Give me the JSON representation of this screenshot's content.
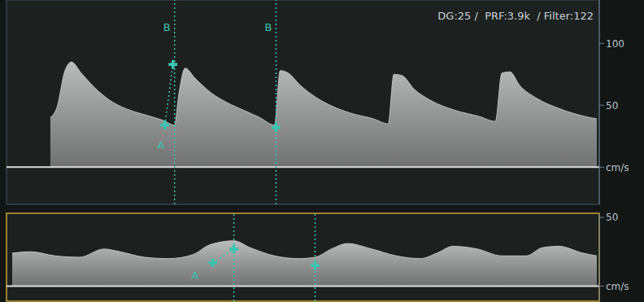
{
  "chart_data": [
    {
      "type": "area",
      "title": "DG:25 /  PRF:3.9k  / Filter:122",
      "x": [
        5.4,
        6.2,
        7.2,
        8,
        9.2,
        11.2,
        13.2,
        15.2,
        17.2,
        19.2,
        20.7,
        21.2,
        22,
        23.2,
        25.2,
        27.2,
        29.2,
        31.2,
        33,
        33.7,
        34.7,
        36.2,
        38.2,
        40.2,
        42.2,
        45.2,
        47,
        47.7,
        48.7,
        50.2,
        52.2,
        55.2,
        58.2,
        60.2,
        61,
        62,
        63.2,
        65.2,
        68.2,
        71.2,
        72.7
      ],
      "values": [
        40,
        48,
        78,
        85,
        76,
        62,
        52,
        46,
        42,
        38,
        34,
        58,
        80,
        72,
        60,
        52,
        46,
        40,
        34,
        78,
        76,
        66,
        56,
        49,
        44,
        39,
        35,
        75,
        74,
        63,
        54,
        46,
        41,
        37,
        76,
        77,
        66,
        56,
        47,
        41,
        39
      ],
      "color": "#bdbdbd",
      "xlim": [
        0,
        73
      ],
      "ylim": [
        -30,
        135
      ],
      "yticks": [
        {
          "value": 0,
          "label": "cm/s"
        },
        50,
        100
      ],
      "tick_labels": "y",
      "markers": [
        {
          "x": 19.5,
          "y": 34
        },
        {
          "x": 20.5,
          "y": 83
        },
        {
          "x": 33.2,
          "y": 32
        }
      ],
      "vlines": [
        {
          "x": 20.7,
          "label": "B"
        },
        {
          "x": 33.2,
          "label": "B"
        }
      ],
      "annotations": [
        {
          "text": "A",
          "x": 19,
          "y": 18
        }
      ]
    },
    {
      "type": "area",
      "x": [
        0.7,
        3,
        6,
        9,
        12,
        14,
        17,
        20,
        23,
        25,
        28,
        30,
        33,
        36,
        38,
        40,
        42,
        45,
        48,
        51,
        53,
        55,
        58,
        61,
        64,
        66,
        68,
        71,
        72.7
      ],
      "values": [
        24,
        25,
        22,
        21,
        27,
        25,
        21,
        20,
        23,
        30,
        33,
        28,
        22,
        20,
        21,
        27,
        31,
        27,
        22,
        20,
        24,
        29,
        27,
        22,
        22,
        28,
        29,
        24,
        22
      ],
      "color": "#bdbdbd",
      "xlim": [
        0,
        73
      ],
      "ylim": [
        -11,
        53
      ],
      "yticks": [
        {
          "value": 0,
          "label": "cm/s"
        },
        50
      ],
      "tick_labels": "y",
      "markers": [
        {
          "x": 25.4,
          "y": 17
        },
        {
          "x": 28,
          "y": 27
        },
        {
          "x": 38,
          "y": 15
        }
      ],
      "vlines": [
        {
          "x": 28
        },
        {
          "x": 38
        }
      ],
      "annotations": [
        {
          "text": "A",
          "x": 23.2,
          "y": 8
        }
      ]
    }
  ]
}
